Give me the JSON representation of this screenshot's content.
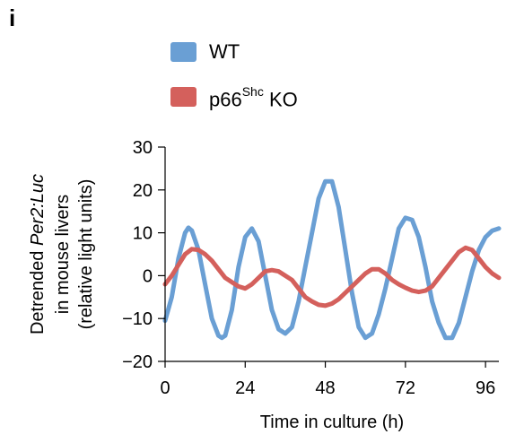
{
  "panel": {
    "letter": "i"
  },
  "legend": [
    {
      "name": "WT",
      "color": "#6a9fd4"
    },
    {
      "name_base": "p66",
      "name_sup": "Shc",
      "name_tail": " KO",
      "color": "#d4605c"
    }
  ],
  "chart_data": {
    "type": "line",
    "xlabel": "Time in culture (h)",
    "ylabel_lines": [
      {
        "pre": "Detrended ",
        "italic": "Per2:Luc",
        "post": ""
      },
      {
        "pre": "in mouse livers",
        "italic": "",
        "post": ""
      },
      {
        "pre": "(relative light units)",
        "italic": "",
        "post": ""
      }
    ],
    "xlim": [
      0,
      100
    ],
    "ylim": [
      -20,
      30
    ],
    "xticks": [
      0,
      24,
      48,
      72,
      96
    ],
    "yticks": [
      30,
      20,
      10,
      0,
      -10,
      -20
    ],
    "grid": false,
    "legend_position": "top-left",
    "series": [
      {
        "name": "WT",
        "color": "#6a9fd4",
        "x": [
          0,
          2,
          4,
          6,
          7,
          8,
          10,
          12,
          14,
          16,
          17,
          18,
          20,
          22,
          24,
          26,
          28,
          30,
          32,
          34,
          36,
          38,
          40,
          42,
          44,
          46,
          48,
          50,
          52,
          54,
          56,
          58,
          60,
          62,
          64,
          66,
          68,
          70,
          72,
          74,
          76,
          78,
          80,
          82,
          84,
          86,
          88,
          90,
          92,
          94,
          96,
          98,
          100
        ],
        "y": [
          -10.5,
          -5,
          4,
          10,
          11.2,
          10.5,
          6,
          -2,
          -10,
          -14,
          -14.5,
          -14,
          -8,
          2,
          9,
          11,
          8,
          0,
          -8,
          -12.5,
          -13.5,
          -12,
          -6,
          2,
          10,
          18,
          22,
          22,
          16,
          6,
          -4,
          -12,
          -14.5,
          -13.5,
          -9,
          -3,
          4,
          11,
          13.5,
          13,
          9,
          2,
          -6,
          -11,
          -14.5,
          -14.5,
          -11,
          -5,
          1,
          6,
          9,
          10.5,
          11
        ]
      },
      {
        "name": "p66Shc KO",
        "color": "#d4605c",
        "x": [
          0,
          2,
          4,
          6,
          8,
          10,
          12,
          14,
          16,
          18,
          20,
          22,
          24,
          26,
          28,
          30,
          32,
          34,
          36,
          38,
          40,
          42,
          44,
          46,
          48,
          50,
          52,
          54,
          56,
          58,
          60,
          62,
          64,
          66,
          68,
          70,
          72,
          74,
          76,
          78,
          80,
          82,
          84,
          86,
          88,
          90,
          92,
          94,
          96,
          98,
          100
        ],
        "y": [
          -2,
          0,
          2.5,
          5,
          6.2,
          6,
          5,
          3.5,
          1.5,
          -0.5,
          -1.5,
          -2.5,
          -3,
          -2,
          -0.5,
          1,
          1.3,
          1,
          0,
          -1,
          -3,
          -5,
          -6,
          -6.8,
          -7,
          -6.5,
          -5.5,
          -4,
          -2.5,
          -1,
          0.5,
          1.5,
          1.5,
          0.5,
          -1,
          -2,
          -2.8,
          -3.5,
          -3.8,
          -3.5,
          -2.5,
          -0.5,
          1.5,
          3.5,
          5.5,
          6.5,
          6,
          4,
          2,
          0.5,
          -0.5
        ]
      }
    ]
  }
}
